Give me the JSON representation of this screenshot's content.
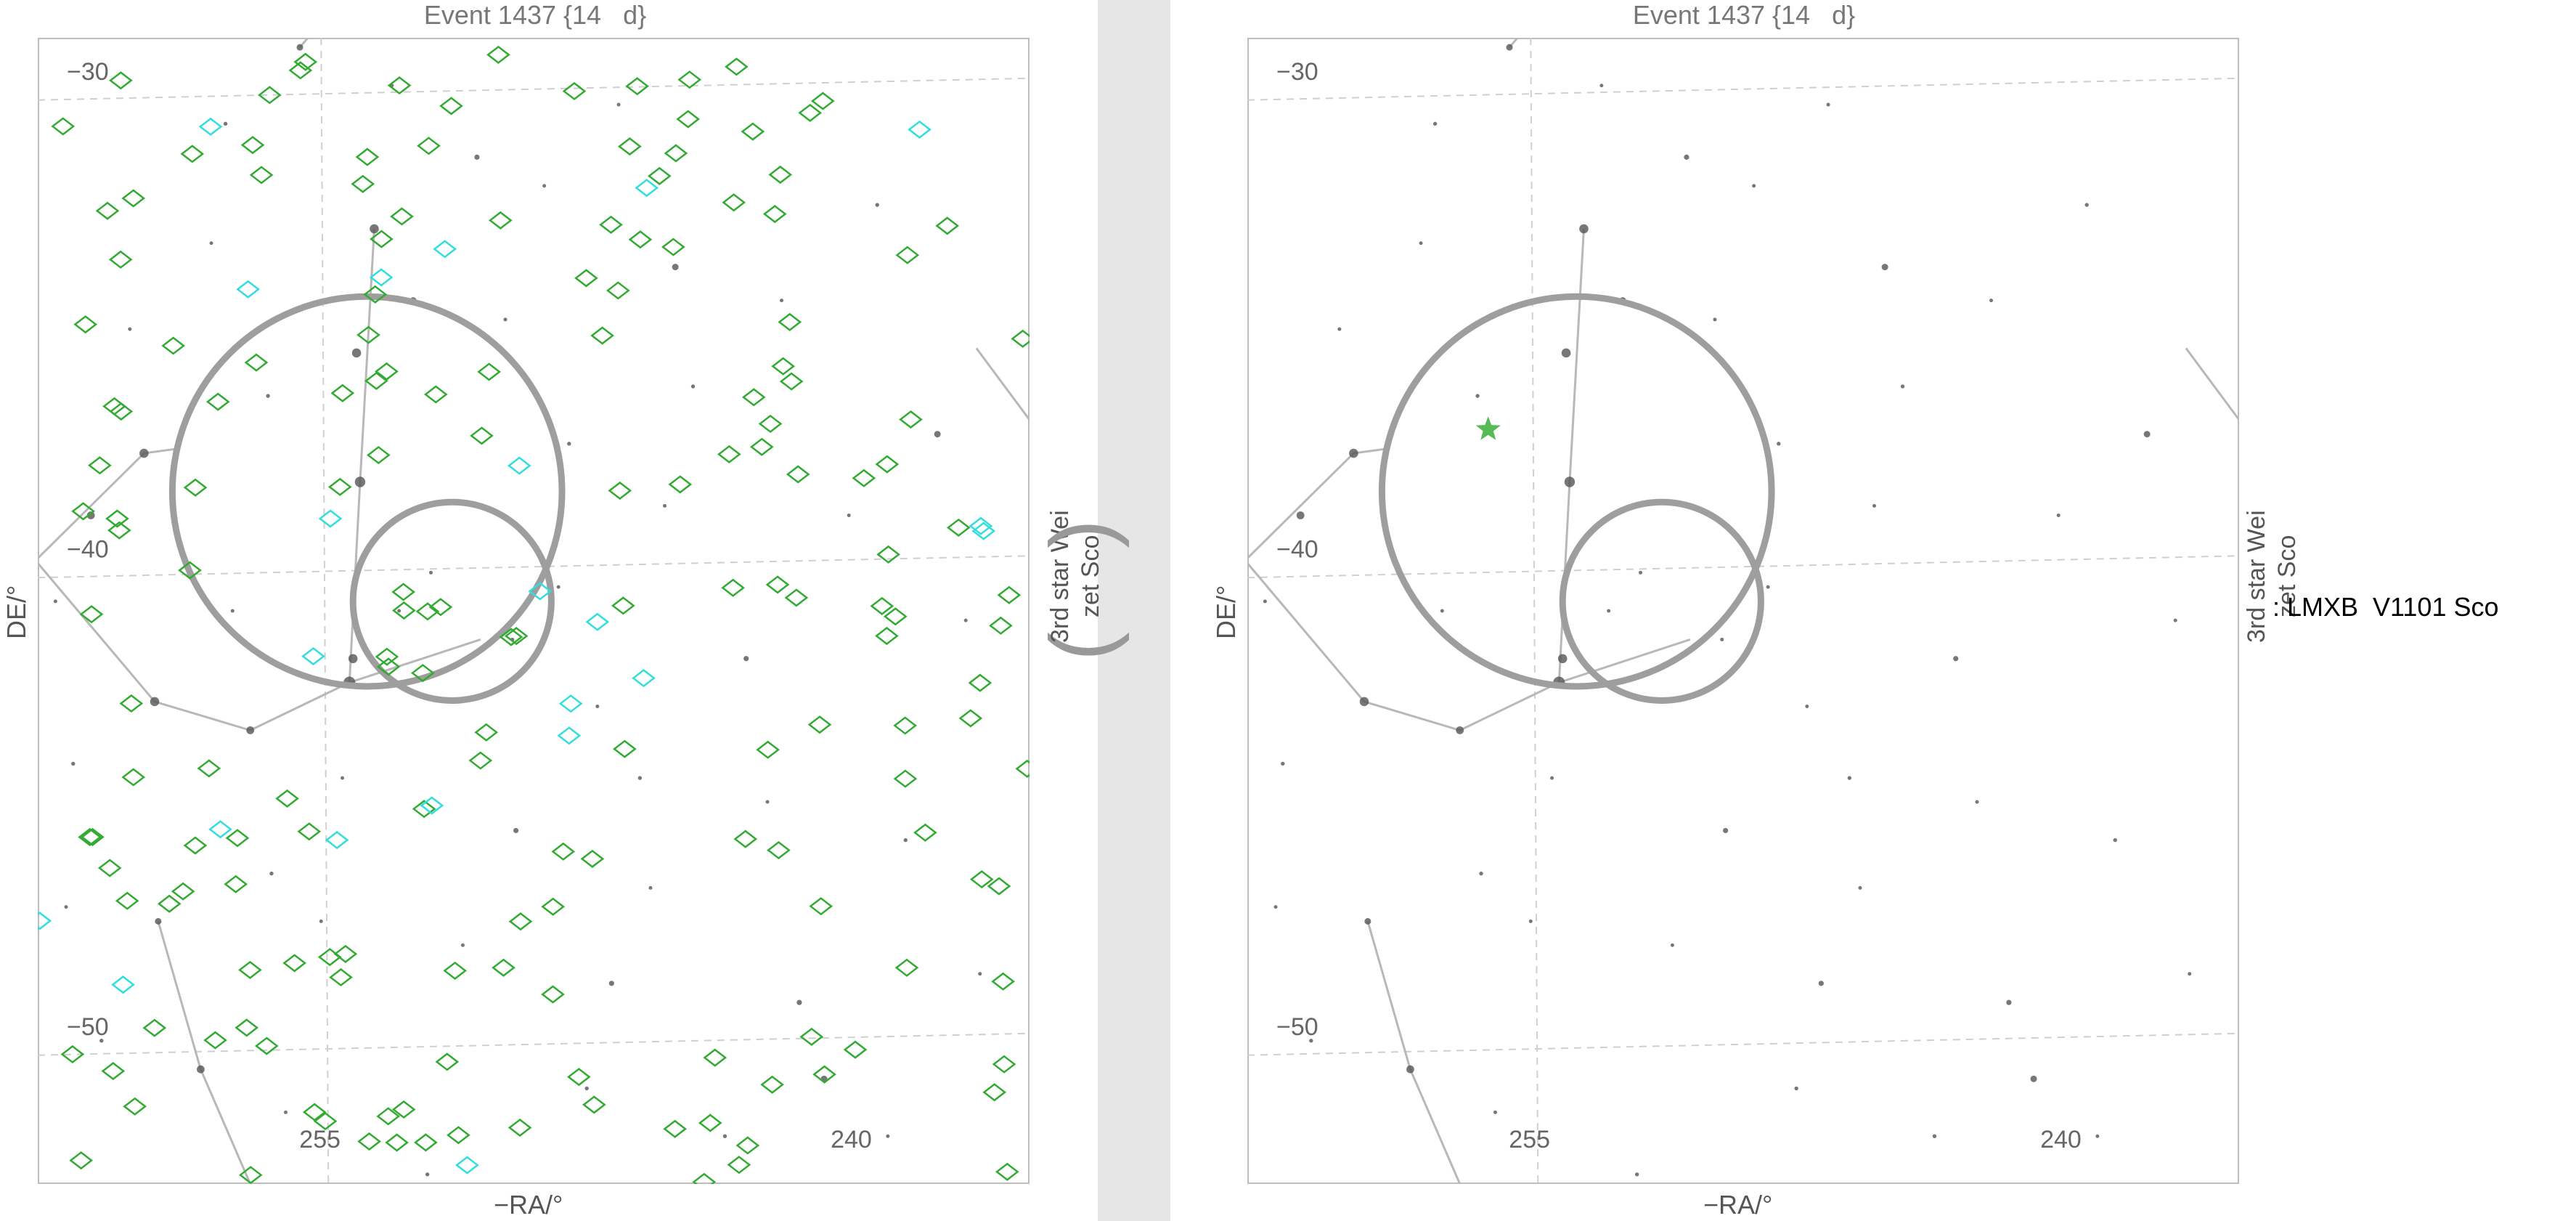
{
  "chart_data": [
    {
      "type": "scatter",
      "title": "Event 1437 {14   d}",
      "xlabel": "−RA/°",
      "ylabel": "DE/°",
      "xlim": [
        263,
        235
      ],
      "ylim": [
        -53,
        -29
      ],
      "tick_labels": {
        "x": [
          "255",
          "240"
        ],
        "y": [
          "−30",
          "−40",
          "−50"
        ]
      },
      "annotations": [
        "3rd star Wei",
        "zet Sco"
      ],
      "circles": [
        {
          "ra": 253.7,
          "dec": -38.5,
          "radius_deg": 5.5
        },
        {
          "ra": 251.3,
          "dec": -40.8,
          "radius_deg": 2.8
        }
      ],
      "stars": [
        {
          "ra": 253.5,
          "dec": -33.0,
          "mag": 3
        },
        {
          "ra": 254.0,
          "dec": -35.6,
          "mag": 3
        },
        {
          "ra": 253.9,
          "dec": -38.3,
          "mag": 2.5
        },
        {
          "ra": 254.1,
          "dec": -42.0,
          "mag": 3
        },
        {
          "ra": 254.2,
          "dec": -42.5,
          "mag": 2
        },
        {
          "ra": 260.0,
          "dec": -37.7,
          "mag": 3
        },
        {
          "ra": 261.5,
          "dec": -39.0,
          "mag": 3.5
        },
        {
          "ra": 259.7,
          "dec": -42.9,
          "mag": 3
        },
        {
          "ra": 257.0,
          "dec": -43.5,
          "mag": 3.5
        },
        {
          "ra": 252.4,
          "dec": -34.5,
          "mag": 4
        },
        {
          "ra": 245.0,
          "dec": -33.8,
          "mag": 4
        },
        {
          "ra": 237.6,
          "dec": -37.3,
          "mag": 4
        },
        {
          "ra": 240.8,
          "dec": -50.8,
          "mag": 4
        },
        {
          "ra": 259.6,
          "dec": -47.5,
          "mag": 4
        },
        {
          "ra": 258.4,
          "dec": -50.6,
          "mag": 3.5
        },
        {
          "ra": 255.6,
          "dec": -29.2,
          "mag": 4
        },
        {
          "ra": 250.6,
          "dec": -31.5,
          "mag": 4.5
        },
        {
          "ra": 249.5,
          "dec": -45.6,
          "mag": 4.5
        },
        {
          "ra": 246.8,
          "dec": -48.8,
          "mag": 4.5
        },
        {
          "ra": 243.0,
          "dec": -42.0,
          "mag": 4.5
        },
        {
          "ra": 241.5,
          "dec": -49.2,
          "mag": 4.5
        },
        {
          "ra": 262.0,
          "dec": -44.2,
          "mag": 5
        },
        {
          "ra": 256.5,
          "dec": -36.5,
          "mag": 5
        },
        {
          "ra": 248.0,
          "dec": -37.5,
          "mag": 5
        },
        {
          "ra": 244.5,
          "dec": -36.3,
          "mag": 5
        },
        {
          "ra": 246.0,
          "dec": -44.5,
          "mag": 5
        },
        {
          "ra": 256.4,
          "dec": -46.5,
          "mag": 5
        },
        {
          "ra": 239.3,
          "dec": -32.5,
          "mag": 5
        },
        {
          "ra": 238.5,
          "dec": -45.8,
          "mag": 5
        },
        {
          "ra": 252.0,
          "dec": -52.8,
          "mag": 5
        },
        {
          "ra": 247.5,
          "dec": -51.0,
          "mag": 5
        },
        {
          "ra": 243.6,
          "dec": -52.0,
          "mag": 5
        },
        {
          "ra": 261.2,
          "dec": -50.0,
          "mag": 5
        },
        {
          "ra": 257.7,
          "dec": -30.8,
          "mag": 5
        },
        {
          "ra": 249.8,
          "dec": -34.9,
          "mag": 5.5
        },
        {
          "ra": 252.8,
          "dec": -41.0,
          "mag": 5.5
        },
        {
          "ra": 249.6,
          "dec": -41.6,
          "mag": 5.5
        },
        {
          "ra": 248.3,
          "dec": -40.5,
          "mag": 5.5
        },
        {
          "ra": 251.9,
          "dec": -40.2,
          "mag": 5.5
        },
        {
          "ra": 258.1,
          "dec": -33.3,
          "mag": 5.5
        },
        {
          "ra": 245.3,
          "dec": -38.8,
          "mag": 5.5
        },
        {
          "ra": 242.0,
          "dec": -34.5,
          "mag": 5.5
        },
        {
          "ra": 240.1,
          "dec": -39.0,
          "mag": 5.5
        },
        {
          "ra": 262.5,
          "dec": -40.8,
          "mag": 5.5
        },
        {
          "ra": 260.4,
          "dec": -35.1,
          "mag": 5.5
        },
        {
          "ra": 255.0,
          "dec": -47.5,
          "mag": 5.5
        },
        {
          "ra": 251.0,
          "dec": -48.0,
          "mag": 5.5
        },
        {
          "ra": 245.7,
          "dec": -46.8,
          "mag": 5.5
        },
        {
          "ra": 242.4,
          "dec": -45.0,
          "mag": 5.5
        },
        {
          "ra": 236.4,
          "dec": -48.6,
          "mag": 5.5
        },
        {
          "ra": 262.2,
          "dec": -47.2,
          "mag": 5.5
        },
        {
          "ra": 257.5,
          "dec": -41.0,
          "mag": 5.5
        },
        {
          "ra": 253.0,
          "dec": -30.0,
          "mag": 5.5
        },
        {
          "ra": 248.7,
          "dec": -32.1,
          "mag": 5.5
        },
        {
          "ra": 246.6,
          "dec": -30.4,
          "mag": 5.5
        },
        {
          "ra": 236.8,
          "dec": -41.2,
          "mag": 5.5
        },
        {
          "ra": 239.0,
          "dec": -52.0,
          "mag": 5.5
        },
        {
          "ra": 256.0,
          "dec": -51.5,
          "mag": 5.5
        },
        {
          "ra": 254.4,
          "dec": -44.5,
          "mag": 5.5
        },
        {
          "ra": 247.2,
          "dec": -43.0,
          "mag": 5.5
        }
      ]
    },
    {
      "type": "scatter",
      "title": "Event 1437 {14   d}",
      "xlabel": "−RA/°",
      "ylabel": "DE/°",
      "xlim": [
        263,
        235
      ],
      "ylim": [
        -53,
        -29
      ],
      "tick_labels": {
        "x": [
          "255",
          "240"
        ],
        "y": [
          "−30",
          "−40",
          "−50"
        ]
      },
      "annotations": [
        "3rd star Wei",
        "zet Sco"
      ],
      "legend": [
        {
          "symbol": "green star",
          "label": ": LMXB  V1101 Sco"
        }
      ],
      "highlight_source": {
        "ra": 256.2,
        "dec": -37.2,
        "name": "V1101 Sco"
      }
    }
  ],
  "colors": {
    "circle": "#9e9e9e",
    "stars": "#555555",
    "constellation_lines": "#b8b8b8",
    "grid": "#cfcfcf",
    "diamond_green": "#33aa33",
    "diamond_cyan": "#33dddd",
    "source_star": "#55bb55"
  }
}
